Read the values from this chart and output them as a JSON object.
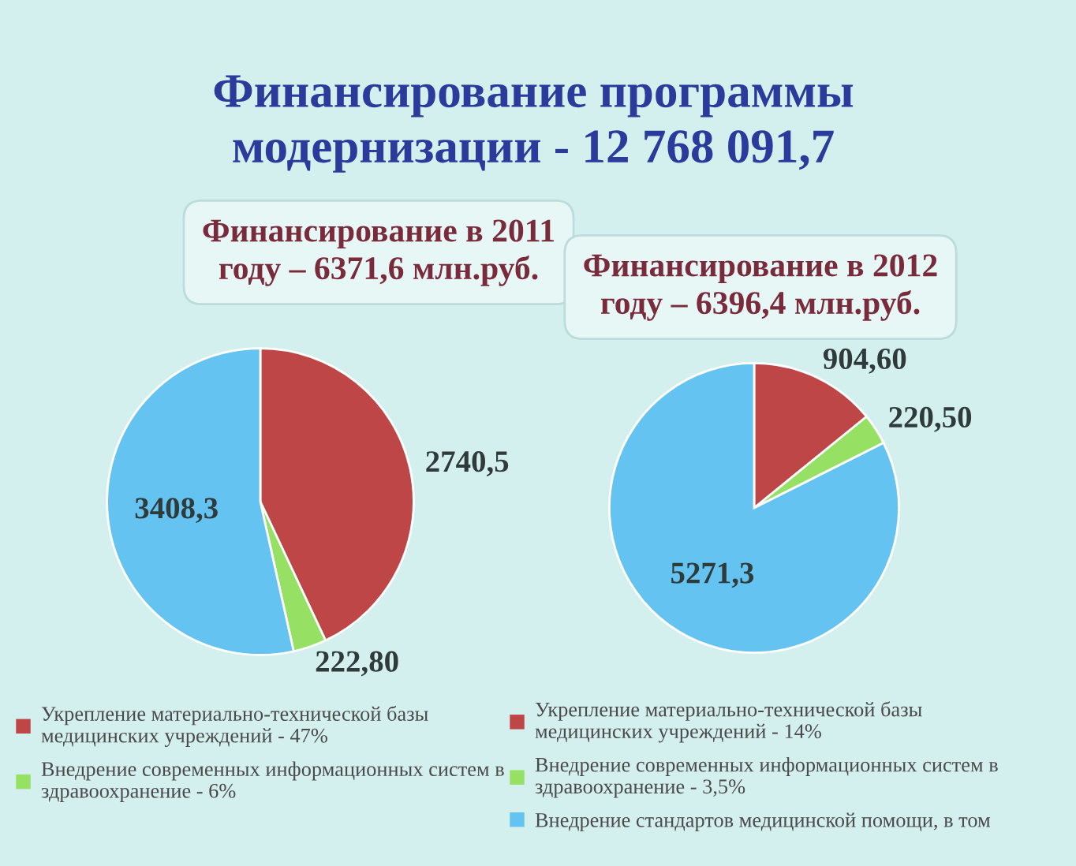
{
  "chart_data": [
    {
      "type": "pie",
      "title": "Финансирование программы\nмодернизации - 12 768 091,7",
      "subtitle": "Финансирование в 2011\nгоду – 6371,6 млн.руб.",
      "categories": [
        "Укрепление материально-технической базы\nмедицинских учреждений - 47%",
        "Внедрение современных информационных систем в\nздравоохранение - 6%",
        null
      ],
      "values": [
        2740.5,
        222.8,
        3408.3
      ],
      "value_labels": [
        "2740,5",
        "222,80",
        "3408,3"
      ],
      "colors": [
        "#be4646",
        "#96e164",
        "#64c3f0"
      ],
      "legend": "bottom"
    },
    {
      "type": "pie",
      "subtitle": "Финансирование в 2012\nгоду – 6396,4 млн.руб.",
      "categories": [
        "Укрепление материально-технической базы\nмедицинских учреждений - 14%",
        "Внедрение современных информационных систем в\nздравоохранение - 3,5%",
        "Внедрение стандартов медицинской помощи, в том"
      ],
      "values": [
        904.6,
        220.5,
        5271.3
      ],
      "value_labels": [
        "904,60",
        "220,50",
        "5271,3"
      ],
      "colors": [
        "#be4646",
        "#96e164",
        "#64c3f0"
      ],
      "legend": "bottom"
    }
  ]
}
